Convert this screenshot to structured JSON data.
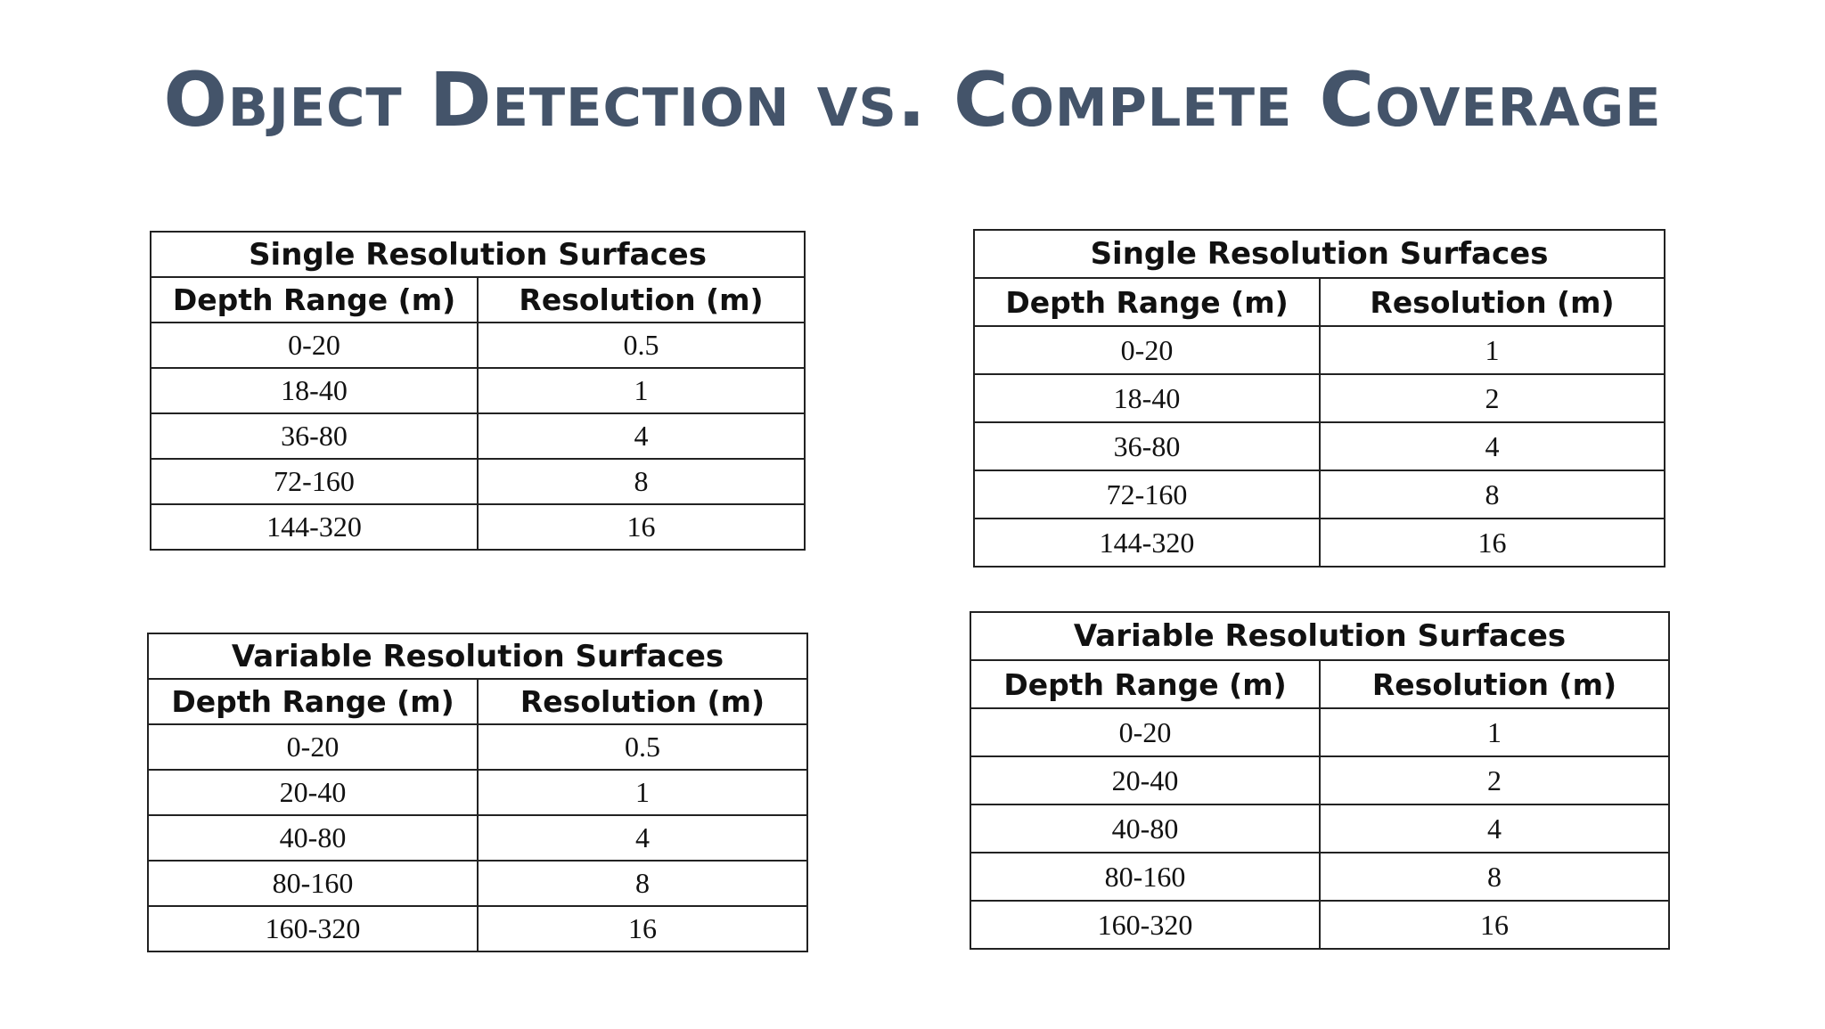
{
  "slide": {
    "title": "Object Detection vs. Complete Coverage"
  },
  "tables": {
    "top_left": {
      "caption": "Single Resolution Surfaces",
      "headers": [
        "Depth Range (m)",
        "Resolution (m)"
      ],
      "rows": [
        [
          "0-20",
          "0.5"
        ],
        [
          "18-40",
          "1"
        ],
        [
          "36-80",
          "4"
        ],
        [
          "72-160",
          "8"
        ],
        [
          "144-320",
          "16"
        ]
      ]
    },
    "top_right": {
      "caption": "Single Resolution Surfaces",
      "headers": [
        "Depth Range (m)",
        "Resolution (m)"
      ],
      "rows": [
        [
          "0-20",
          "1"
        ],
        [
          "18-40",
          "2"
        ],
        [
          "36-80",
          "4"
        ],
        [
          "72-160",
          "8"
        ],
        [
          "144-320",
          "16"
        ]
      ]
    },
    "bottom_left": {
      "caption": "Variable Resolution Surfaces",
      "headers": [
        "Depth Range (m)",
        "Resolution (m)"
      ],
      "rows": [
        [
          "0-20",
          "0.5"
        ],
        [
          "20-40",
          "1"
        ],
        [
          "40-80",
          "4"
        ],
        [
          "80-160",
          "8"
        ],
        [
          "160-320",
          "16"
        ]
      ]
    },
    "bottom_right": {
      "caption": "Variable Resolution Surfaces",
      "headers": [
        "Depth Range (m)",
        "Resolution (m)"
      ],
      "rows": [
        [
          "0-20",
          "1"
        ],
        [
          "20-40",
          "2"
        ],
        [
          "40-80",
          "4"
        ],
        [
          "80-160",
          "8"
        ],
        [
          "160-320",
          "16"
        ]
      ]
    }
  }
}
